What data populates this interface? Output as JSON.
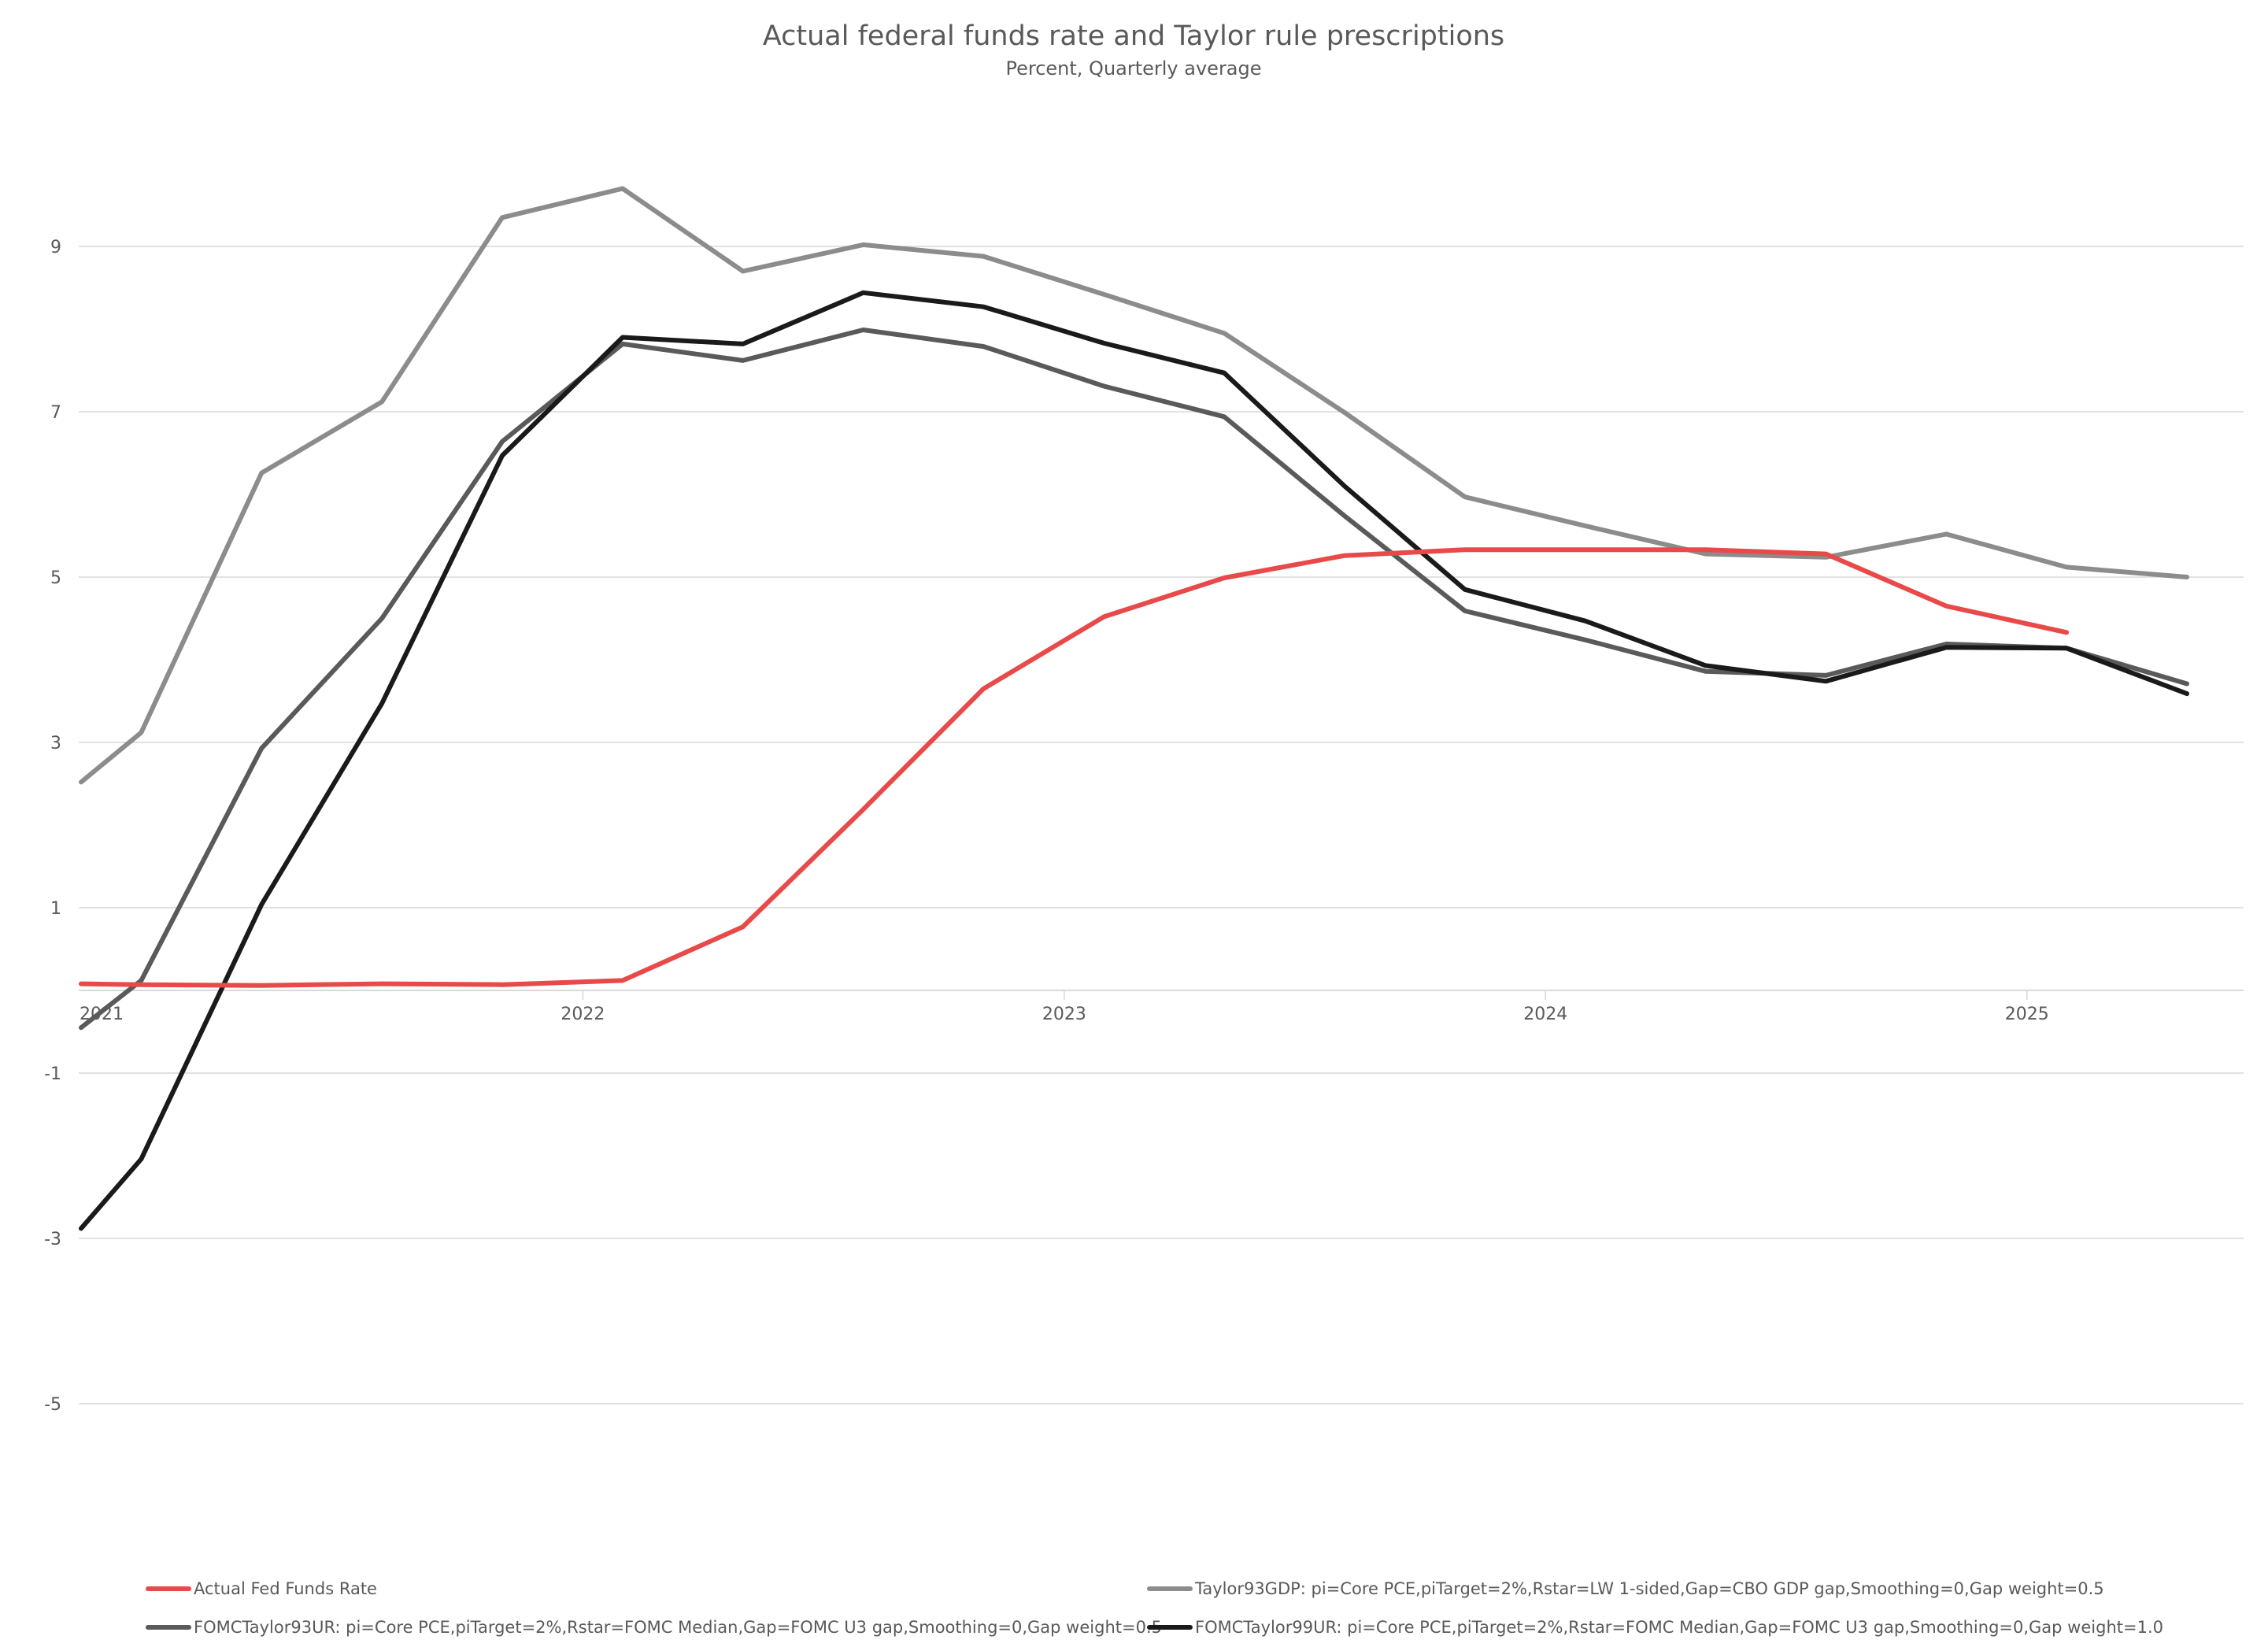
{
  "chart_data": {
    "type": "line",
    "title": "Actual federal funds rate and Taylor rule prescriptions",
    "subtitle": "Percent, Quarterly average",
    "xlabel": "",
    "ylabel": "",
    "x_start_year": 2021,
    "x_end_year": 2025.75,
    "x_tick_labels": [
      "2021",
      "2022",
      "2023",
      "2024",
      "2025"
    ],
    "x_tick_values": [
      2021,
      2022,
      2023,
      2024,
      2025
    ],
    "y_ticks": [
      9,
      7,
      5,
      3,
      1,
      -1,
      -3,
      -5
    ],
    "y_tick_labels": [
      "9",
      "7",
      "5",
      "3",
      "1",
      "-1",
      "-3",
      "-5"
    ],
    "ylim": [
      -6.5,
      11
    ],
    "grid": true,
    "legend_position": "bottom",
    "series": [
      {
        "name": "Actual Fed Funds Rate",
        "color": "#e84a4a",
        "x": [
          2021.0,
          2021.125,
          2021.375,
          2021.625,
          2021.875,
          2022.125,
          2022.375,
          2022.625,
          2022.875,
          2023.125,
          2023.375,
          2023.625,
          2023.875,
          2024.125,
          2024.375,
          2024.625,
          2024.875,
          2025.125
        ],
        "values": [
          0.08,
          0.07,
          0.06,
          0.08,
          0.07,
          0.12,
          0.77,
          2.19,
          3.65,
          4.52,
          4.99,
          5.26,
          5.33,
          5.33,
          5.33,
          5.28,
          4.65,
          4.33
        ]
      },
      {
        "name": "Taylor93GDP:  pi=Core PCE,piTarget=2%,Rstar=LW 1-sided,Gap=CBO GDP gap,Smoothing=0,Gap weight=0.5",
        "color": "#8c8c8c",
        "x": [
          2021.0,
          2021.125,
          2021.375,
          2021.625,
          2021.875,
          2022.125,
          2022.375,
          2022.625,
          2022.875,
          2023.125,
          2023.375,
          2023.625,
          2023.875,
          2024.125,
          2024.375,
          2024.625,
          2024.875,
          2025.125,
          2025.375
        ],
        "values": [
          2.52,
          3.12,
          6.26,
          7.12,
          9.35,
          9.7,
          8.7,
          9.02,
          8.88,
          8.42,
          7.95,
          6.99,
          5.97,
          5.62,
          5.28,
          5.24,
          5.52,
          5.12,
          5.0
        ]
      },
      {
        "name": "FOMCTaylor93UR:  pi=Core PCE,piTarget=2%,Rstar=FOMC Median,Gap=FOMC U3 gap,Smoothing=0,Gap weight=0.5",
        "color": "#5a5a5a",
        "x": [
          2021.0,
          2021.125,
          2021.375,
          2021.625,
          2021.875,
          2022.125,
          2022.375,
          2022.625,
          2022.875,
          2023.125,
          2023.375,
          2023.625,
          2023.875,
          2024.125,
          2024.375,
          2024.625,
          2024.875,
          2025.125,
          2025.375
        ],
        "values": [
          -0.45,
          0.12,
          2.93,
          4.5,
          6.64,
          7.82,
          7.62,
          7.99,
          7.79,
          7.31,
          6.94,
          5.74,
          4.59,
          4.24,
          3.86,
          3.81,
          4.19,
          4.14,
          3.71
        ]
      },
      {
        "name": "FOMCTaylor99UR:  pi=Core PCE,piTarget=2%,Rstar=FOMC Median,Gap=FOMC U3 gap,Smoothing=0,Gap weight=1.0",
        "color": "#1a1a1a",
        "x": [
          2021.0,
          2021.125,
          2021.375,
          2021.625,
          2021.875,
          2022.125,
          2022.375,
          2022.625,
          2022.875,
          2023.125,
          2023.375,
          2023.625,
          2023.875,
          2024.125,
          2024.375,
          2024.625,
          2024.875,
          2025.125,
          2025.375
        ],
        "values": [
          -2.88,
          -2.04,
          1.04,
          3.47,
          6.47,
          7.9,
          7.82,
          8.44,
          8.27,
          7.83,
          7.47,
          6.1,
          4.85,
          4.47,
          3.93,
          3.74,
          4.15,
          4.14,
          3.59
        ]
      }
    ]
  }
}
